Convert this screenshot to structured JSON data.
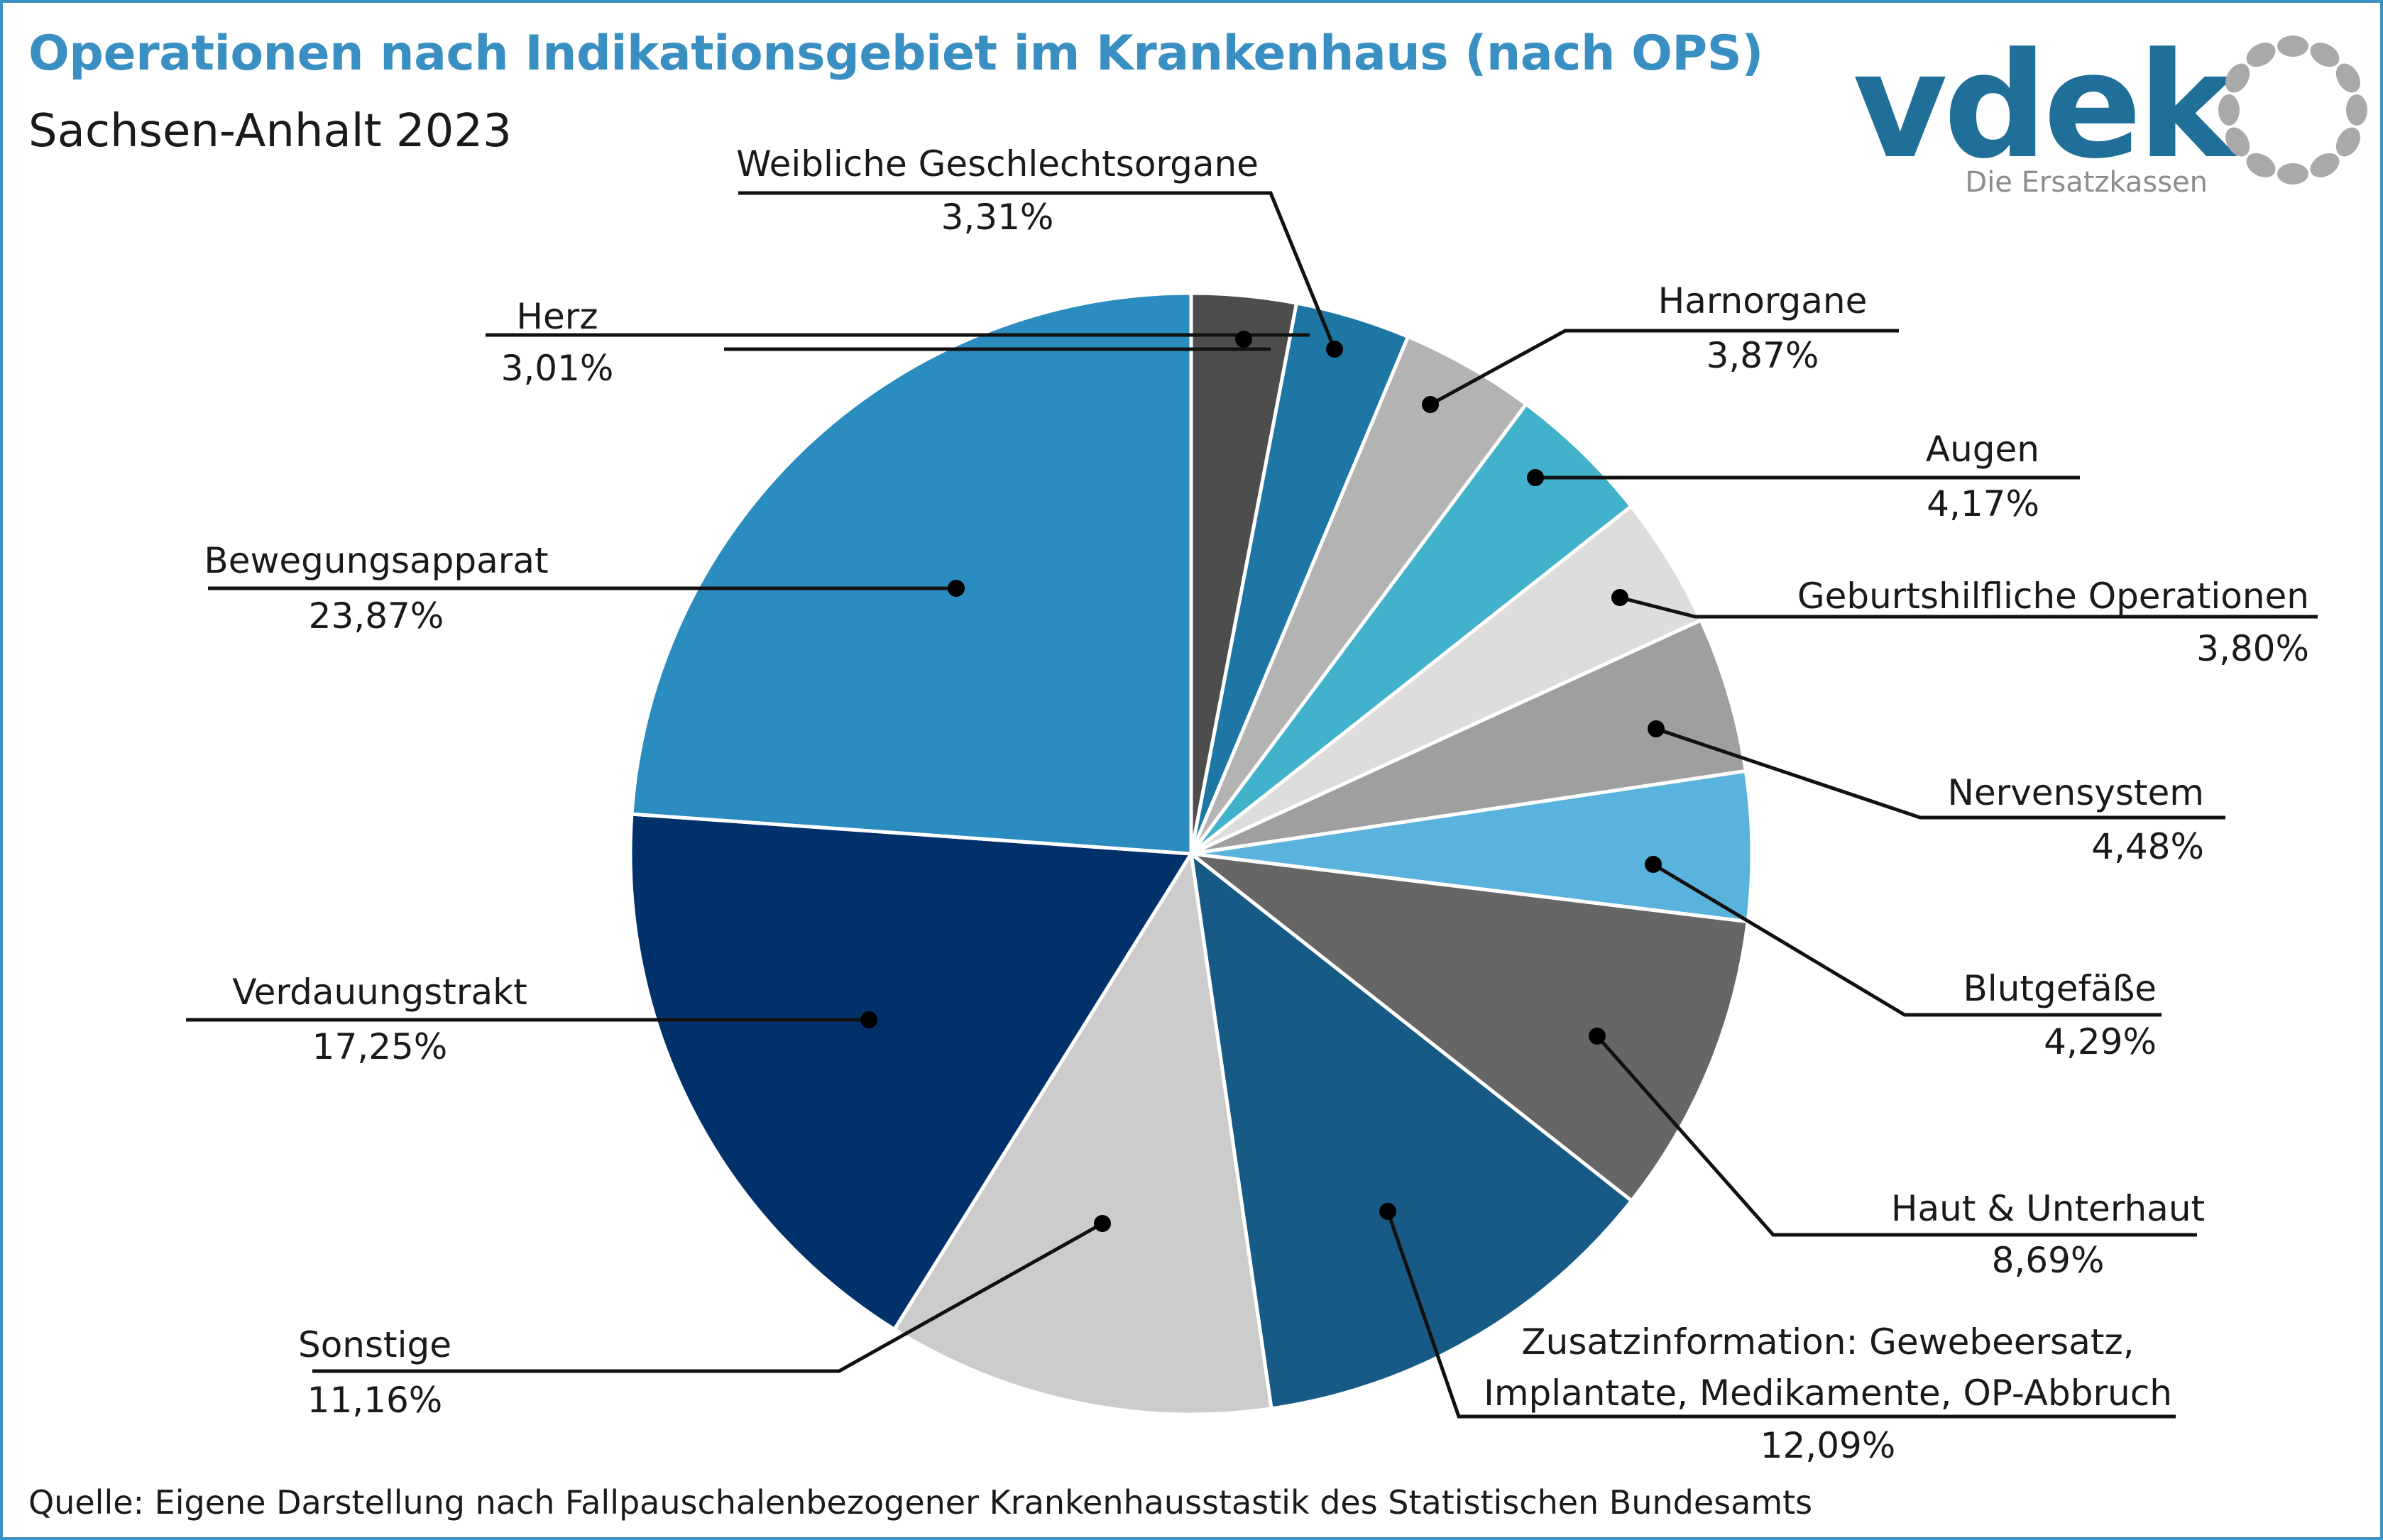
{
  "header": {
    "title": "Operationen nach Indikationsgebiet im Krankenhaus (nach OPS)",
    "subtitle": "Sachsen-Anhalt 2023"
  },
  "logo": {
    "wordmark": "vdek",
    "tagline": "Die Ersatzkassen",
    "color": "#1f6f99",
    "ring_color": "#a9a9a9"
  },
  "source": "Quelle: Eigene Darstellung nach Fallpauschalenbezogener Krankenhausstastik des Statistischen Bundesamts",
  "chart_data": {
    "type": "pie",
    "title": "Operationen nach Indikationsgebiet im Krankenhaus (nach OPS)",
    "subtitle": "Sachsen-Anhalt 2023",
    "start": "12 o'clock",
    "direction": "clockwise",
    "slices": [
      {
        "label": "Herz",
        "value": 3.01,
        "display": "3,01%",
        "color": "#4d4d4d"
      },
      {
        "label": "Weibliche Geschlechtsorgane",
        "value": 3.31,
        "display": "3,31%",
        "color": "#1d76a3"
      },
      {
        "label": "Harnorgane",
        "value": 3.87,
        "display": "3,87%",
        "color": "#b3b3b3"
      },
      {
        "label": "Augen",
        "value": 4.17,
        "display": "4,17%",
        "color": "#41b1cc"
      },
      {
        "label": "Geburtshilfliche Operationen",
        "value": 3.8,
        "display": "3,80%",
        "color": "#dddddd"
      },
      {
        "label": "Nervensystem",
        "value": 4.48,
        "display": "4,48%",
        "color": "#9f9f9f"
      },
      {
        "label": "Blutgefäße",
        "value": 4.29,
        "display": "4,29%",
        "color": "#5ab3dc"
      },
      {
        "label": "Haut & Unterhaut",
        "value": 8.69,
        "display": "8,69%",
        "color": "#666666"
      },
      {
        "label": "Zusatzinformation: Gewebeersatz,\nImplantate, Medikamente, OP-Abbruch",
        "value": 12.09,
        "display": "12,09%",
        "color": "#175a86"
      },
      {
        "label": "Sonstige",
        "value": 11.16,
        "display": "11,16%",
        "color": "#cccccc"
      },
      {
        "label": "Verdauungstrakt",
        "value": 17.25,
        "display": "17,25%",
        "color": "#00316a"
      },
      {
        "label": "Bewegungsapparat",
        "value": 23.87,
        "display": "23,87%",
        "color": "#2b8cbf"
      }
    ]
  }
}
